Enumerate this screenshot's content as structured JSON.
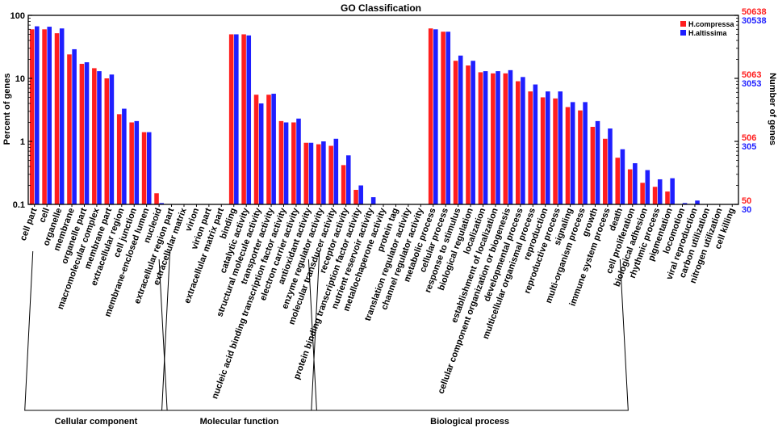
{
  "chart_data": {
    "type": "bar",
    "title": "GO Classification",
    "ylabel_left": "Percent of genes",
    "ylabel_right": "Number of genes",
    "yscale": "log",
    "ylim": [
      0.1,
      100
    ],
    "y_ticks": [
      "100",
      "10",
      "1",
      "0.1"
    ],
    "right_ticks_red": [
      "50638",
      "5063",
      "506",
      "50"
    ],
    "right_ticks_blue": [
      "30538",
      "3053",
      "305",
      "30"
    ],
    "colors": {
      "H.compressa": "#ff1f1f",
      "H.altissima": "#1f1fff"
    },
    "groups": [
      {
        "name": "Cellular component",
        "start": 0,
        "end": 10
      },
      {
        "name": "Molecular function",
        "start": 11,
        "end": 22
      },
      {
        "name": "Biological process",
        "start": 23,
        "end": 47
      }
    ],
    "categories": [
      "cell part",
      "cell",
      "organelle",
      "membrane",
      "organelle part",
      "macromolecular complex",
      "membrane part",
      "extracellular region",
      "cell junction",
      "membrane-enclosed lumen",
      "nucleoid",
      "extracellular region part",
      "extracellular matrix",
      "virion",
      "virion part",
      "extracellular matrix part",
      "binding",
      "catalytic activity",
      "structural molecule activity",
      "transporter activity",
      "nucleic acid binding transcription factor activity",
      "electron carrier activity",
      "antioxidant activity",
      "enzyme regulator activity",
      "molecular transducer activity",
      "receptor activity",
      "protein binding transcription factor activity",
      "nutrient reservoir activity",
      "metallochaperone activity",
      "protein tag",
      "translation regulator activity",
      "channel regulator activity",
      "metabolic process",
      "cellular process",
      "response to stimulus",
      "biological regulation",
      "localization",
      "establishment of localization",
      "cellular component organization or biogenesis",
      "developmental process",
      "multicellular organismal process",
      "reproduction",
      "reproductive process",
      "signaling",
      "multi-organism process",
      "growth",
      "immune system process",
      "death",
      "cell proliferation",
      "biological adhesion",
      "rhythmic process",
      "pigmentation",
      "locomotion",
      "viral reproduction",
      "carbon utilization",
      "nitrogen utilization",
      "cell killing"
    ],
    "series": [
      {
        "name": "H.compressa",
        "values": [
          60,
          60,
          52,
          24,
          17,
          14.5,
          10,
          2.7,
          2,
          1.4,
          0.15,
          0,
          0,
          0,
          0,
          0,
          50,
          50,
          5.5,
          5.5,
          2.1,
          2,
          0.95,
          0.9,
          0.85,
          0.42,
          0.17,
          0,
          0,
          0,
          0,
          0,
          62,
          55,
          19,
          16,
          12.5,
          12,
          12,
          9,
          6.2,
          5,
          4.8,
          3.5,
          3.1,
          1.7,
          1.1,
          0.55,
          0.36,
          0.22,
          0.19,
          0.16,
          0,
          0,
          0,
          0,
          0
        ]
      },
      {
        "name": "H.altissima",
        "values": [
          67,
          66,
          62,
          29,
          18,
          13,
          11.5,
          3.3,
          2.1,
          1.4,
          0.105,
          0,
          0,
          0,
          0,
          0,
          50,
          48,
          4,
          5.7,
          2,
          2.3,
          0.95,
          1,
          1.1,
          0.6,
          0.2,
          0.13,
          0,
          0,
          0,
          0,
          60,
          55,
          23,
          19,
          13,
          13,
          13.5,
          10.5,
          8,
          6.2,
          6.2,
          4.2,
          4.2,
          2.1,
          1.6,
          0.75,
          0.45,
          0.35,
          0.25,
          0.26,
          0.105,
          0.115,
          0.101,
          0.101,
          0.101
        ]
      }
    ]
  }
}
